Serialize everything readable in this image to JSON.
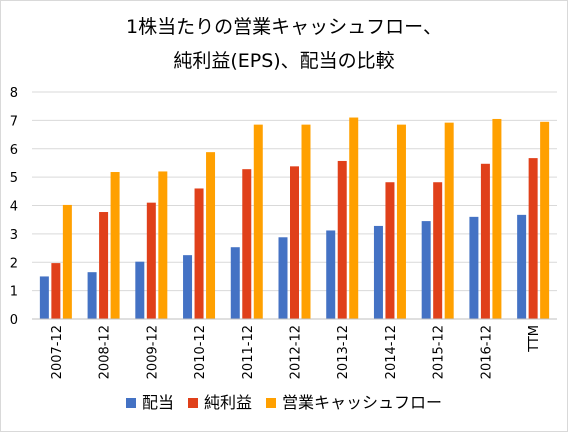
{
  "chart_data": {
    "type": "bar",
    "title_line1": "1株当たりの営業キャッシュフロー、",
    "title_line2": "純利益(EPS)、配当の比較",
    "categories": [
      "2007-12",
      "2008-12",
      "2009-12",
      "2010-12",
      "2011-12",
      "2012-12",
      "2013-12",
      "2014-12",
      "2015-12",
      "2016-12",
      "TTM"
    ],
    "series": [
      {
        "name": "配当",
        "color": "#4472c4",
        "values": [
          1.5,
          1.65,
          2.02,
          2.25,
          2.53,
          2.88,
          3.12,
          3.28,
          3.45,
          3.6,
          3.67
        ]
      },
      {
        "name": "純利益",
        "color": "#e0401a",
        "values": [
          1.97,
          3.77,
          4.1,
          4.6,
          5.28,
          5.38,
          5.57,
          4.82,
          4.82,
          5.47,
          5.67
        ]
      },
      {
        "name": "営業キャッシュフロー",
        "color": "#ffa000",
        "values": [
          4.02,
          5.18,
          5.2,
          5.88,
          6.85,
          6.85,
          7.1,
          6.85,
          6.92,
          7.05,
          6.95
        ]
      }
    ],
    "ylim": [
      0,
      8
    ],
    "yticks": [
      "0",
      "1",
      "2",
      "3",
      "4",
      "5",
      "6",
      "7",
      "8"
    ],
    "grid": true,
    "legend": "bottom"
  }
}
